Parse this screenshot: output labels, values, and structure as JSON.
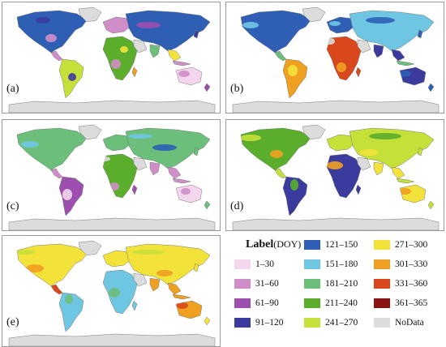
{
  "panels": [
    {
      "label": "(a)",
      "palette": "a"
    },
    {
      "label": "(b)",
      "palette": "b"
    },
    {
      "label": "(c)",
      "palette": "c"
    },
    {
      "label": "(d)",
      "palette": "d"
    },
    {
      "label": "(e)",
      "palette": "e"
    }
  ],
  "legend": {
    "title_bold": "Label",
    "title_unit": "(DOY)",
    "items": [
      {
        "label": "1–30",
        "color": "#f4d6ee"
      },
      {
        "label": "31–60",
        "color": "#d08ec9"
      },
      {
        "label": "61–90",
        "color": "#9c4fae"
      },
      {
        "label": "91–120",
        "color": "#3b3b9e"
      },
      {
        "label": "121–150",
        "color": "#2e5fb5"
      },
      {
        "label": "151–180",
        "color": "#6ec6e3"
      },
      {
        "label": "181–210",
        "color": "#6bbf7a"
      },
      {
        "label": "211–240",
        "color": "#5aae2c"
      },
      {
        "label": "241–270",
        "color": "#c6e03a"
      },
      {
        "label": "271–300",
        "color": "#f2e23a"
      },
      {
        "label": "301–330",
        "color": "#f0a020"
      },
      {
        "label": "331–360",
        "color": "#d9481c"
      },
      {
        "label": "361–365",
        "color": "#8a1414"
      },
      {
        "label": "NoData",
        "color": "#dcdcdc"
      }
    ]
  }
}
